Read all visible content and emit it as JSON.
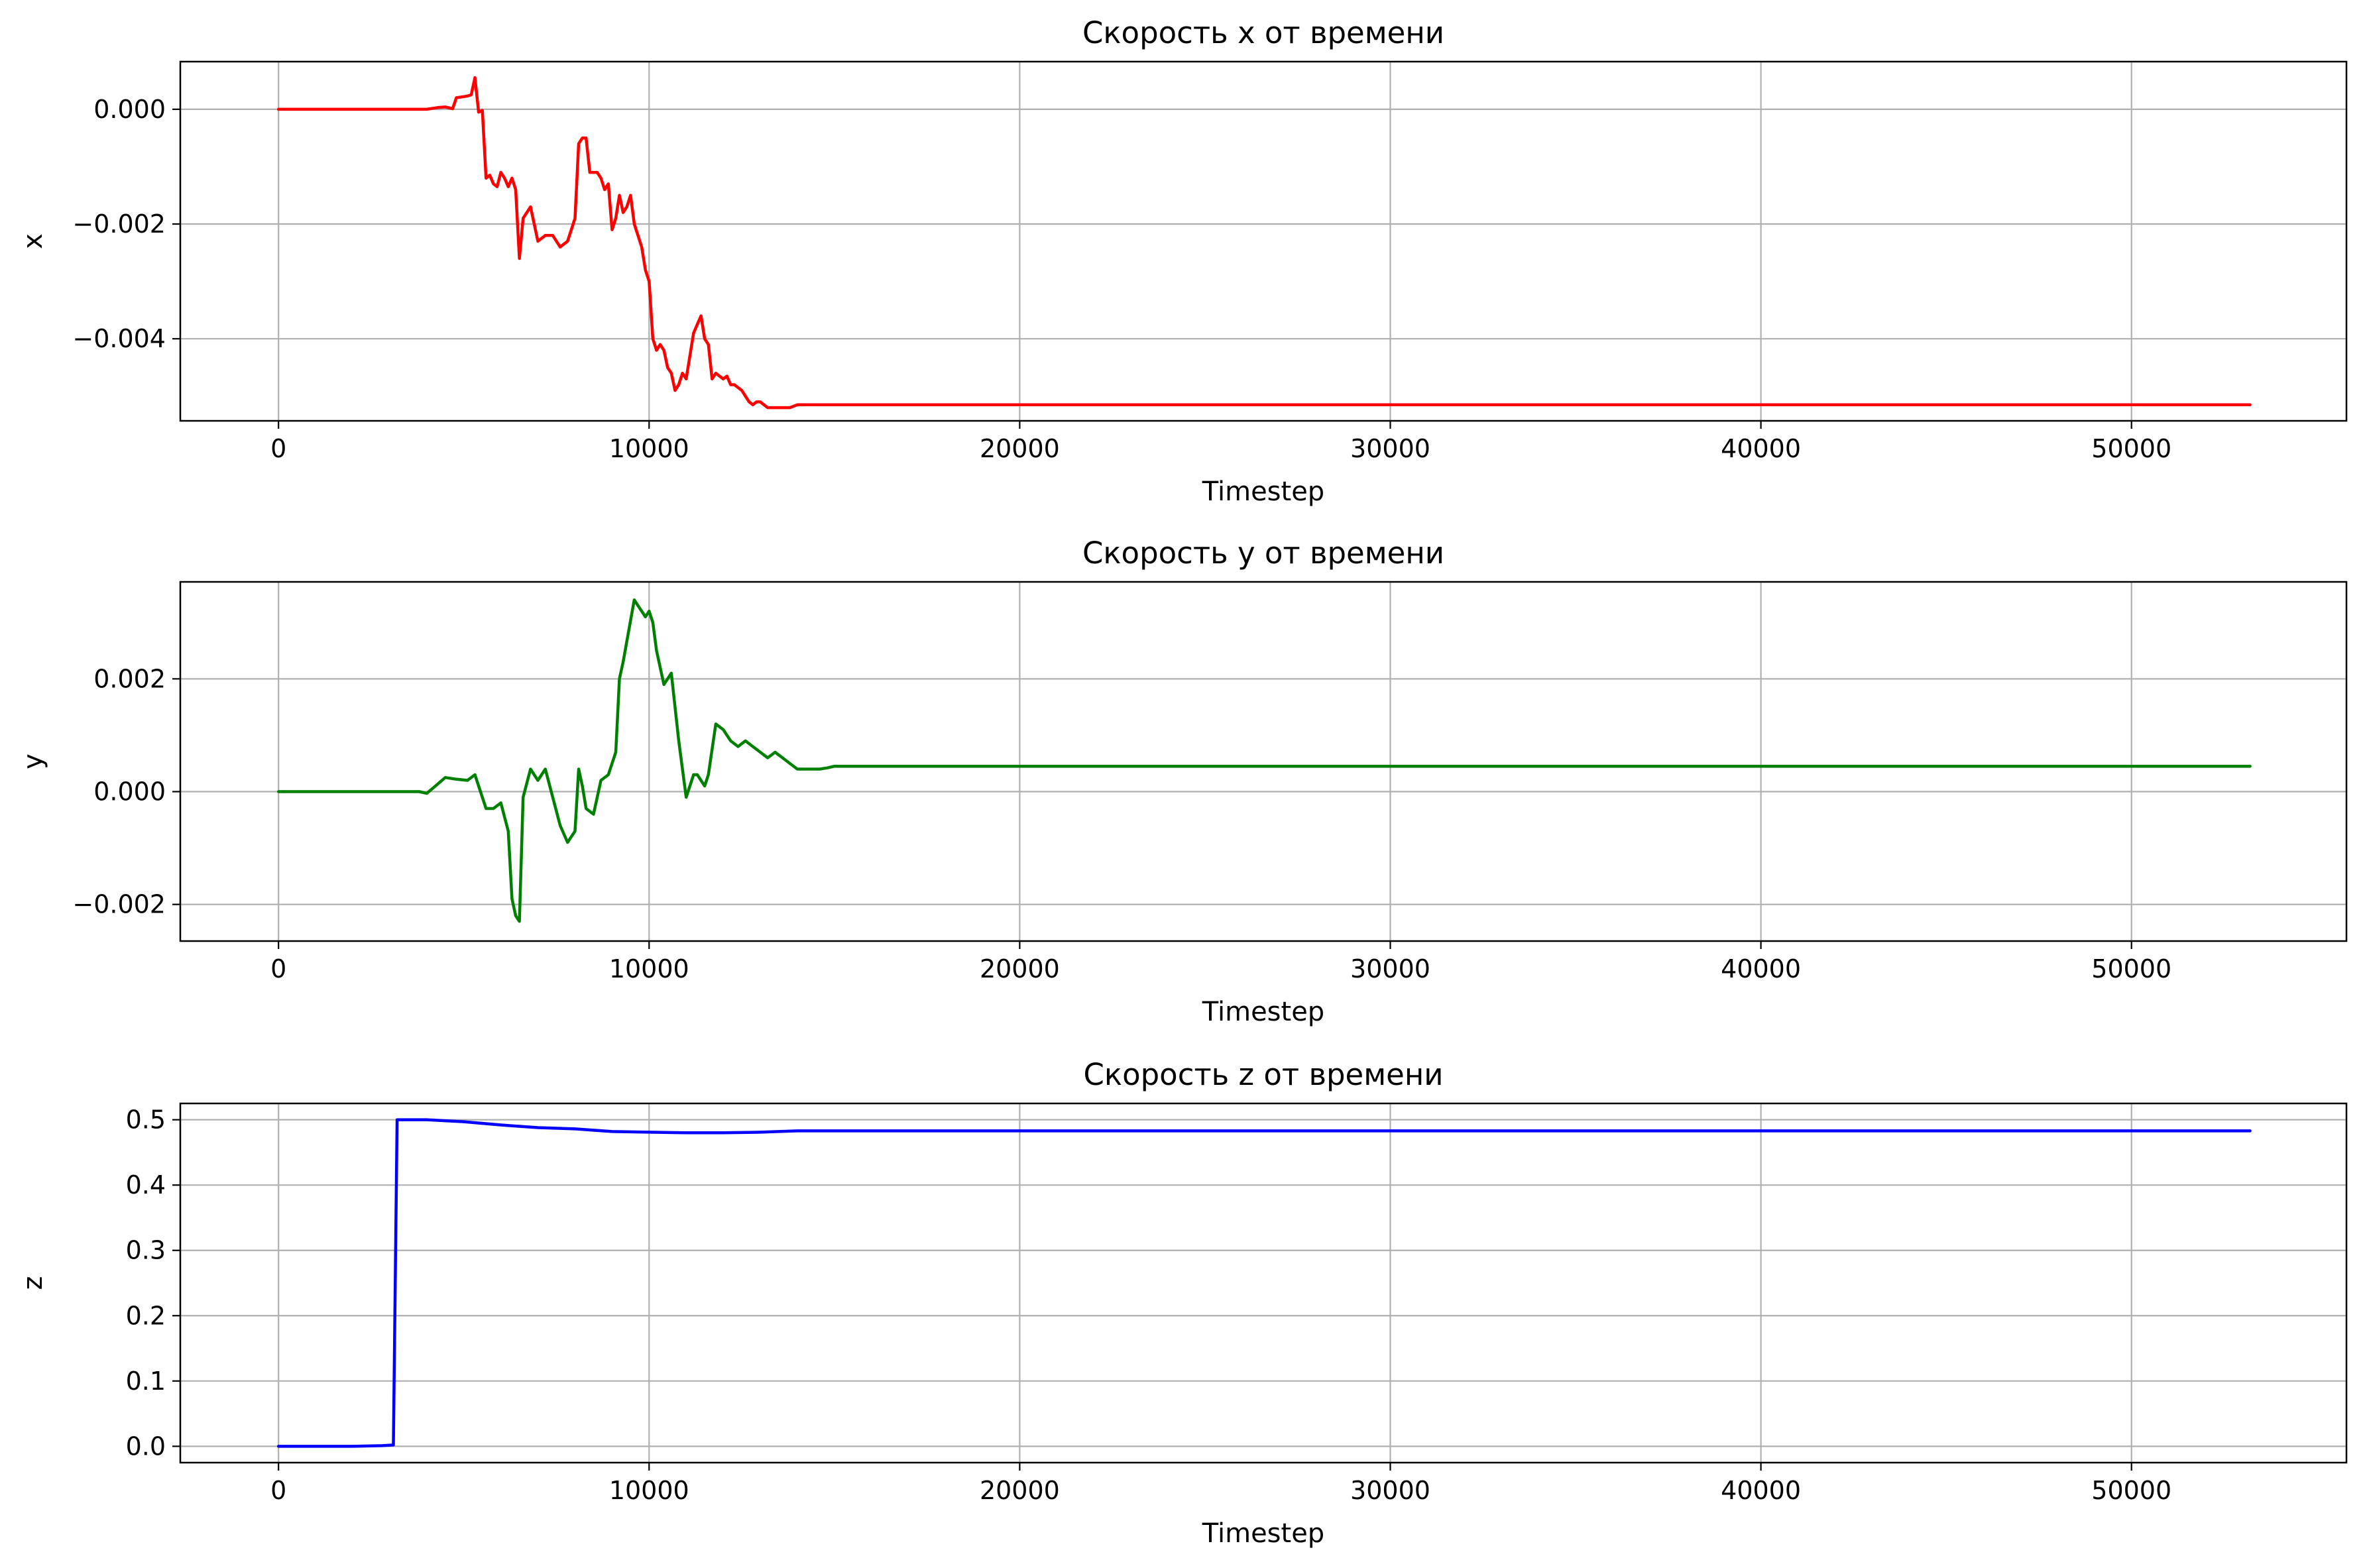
{
  "chart_data": [
    {
      "type": "line",
      "title": "Скорость x от времени",
      "xlabel": "Timestep",
      "ylabel": "x",
      "xlim": [
        -2650,
        55800
      ],
      "ylim": [
        -0.00543,
        0.00083
      ],
      "x_ticks": [
        0,
        10000,
        20000,
        30000,
        40000,
        50000
      ],
      "x_tick_labels": [
        "0",
        "10000",
        "20000",
        "30000",
        "40000",
        "50000"
      ],
      "y_ticks": [
        0.0,
        -0.002,
        -0.004
      ],
      "y_tick_labels": [
        "0.000",
        "−0.002",
        "−0.004"
      ],
      "grid": true,
      "color": "#ff0000",
      "series": [
        {
          "x": [
            0,
            1000,
            2000,
            3000,
            4000,
            4300,
            4500,
            4700,
            4800,
            5000,
            5100,
            5200,
            5300,
            5400,
            5500,
            5600,
            5700,
            5800,
            5900,
            6000,
            6100,
            6200,
            6300,
            6400,
            6500,
            6600,
            6700,
            6800,
            7000,
            7200,
            7400,
            7600,
            7800,
            8000,
            8100,
            8200,
            8300,
            8400,
            8600,
            8700,
            8800,
            8900,
            9000,
            9100,
            9200,
            9300,
            9400,
            9500,
            9600,
            9700,
            9800,
            9900,
            10000,
            10100,
            10200,
            10300,
            10400,
            10500,
            10600,
            10700,
            10800,
            10900,
            11000,
            11200,
            11400,
            11500,
            11600,
            11700,
            11800,
            11900,
            12000,
            12100,
            12200,
            12300,
            12500,
            12600,
            12700,
            12800,
            12900,
            13000,
            13100,
            13200,
            13400,
            13600,
            13800,
            14000,
            14200,
            14400,
            14600,
            14800,
            15000,
            15300,
            15600,
            16000,
            16500,
            17000,
            20000,
            30000,
            40000,
            53200
          ],
          "y": [
            0,
            0,
            0,
            0,
            0,
            3e-05,
            4e-05,
            1e-05,
            0.0002,
            0.00022,
            0.00023,
            0.00025,
            0.00055,
            -5e-05,
            -2e-05,
            -0.0012,
            -0.00115,
            -0.0013,
            -0.00135,
            -0.0011,
            -0.0012,
            -0.00135,
            -0.0012,
            -0.0014,
            -0.0026,
            -0.0019,
            -0.0018,
            -0.0017,
            -0.0023,
            -0.0022,
            -0.0022,
            -0.0024,
            -0.0023,
            -0.0019,
            -0.0006,
            -0.0005,
            -0.0005,
            -0.0011,
            -0.0011,
            -0.0012,
            -0.0014,
            -0.0013,
            -0.0021,
            -0.0019,
            -0.0015,
            -0.0018,
            -0.0017,
            -0.0015,
            -0.002,
            -0.0022,
            -0.0024,
            -0.0028,
            -0.003,
            -0.004,
            -0.0042,
            -0.0041,
            -0.0042,
            -0.0045,
            -0.0046,
            -0.0049,
            -0.0048,
            -0.0046,
            -0.0047,
            -0.0039,
            -0.0036,
            -0.004,
            -0.0041,
            -0.0047,
            -0.0046,
            -0.00465,
            -0.0047,
            -0.00465,
            -0.0048,
            -0.0048,
            -0.0049,
            -0.005,
            -0.0051,
            -0.00515,
            -0.0051,
            -0.0051,
            -0.00515,
            -0.0052,
            -0.0052,
            -0.0052,
            -0.0052,
            -0.00515,
            -0.00515,
            -0.00515,
            -0.00515,
            -0.00515,
            -0.00515,
            -0.00515,
            -0.00515,
            -0.00515,
            -0.00515,
            -0.00515,
            -0.00515,
            -0.00515,
            -0.00515,
            -0.00515
          ]
        }
      ]
    },
    {
      "type": "line",
      "title": "Скорость y от времени",
      "xlabel": "Timestep",
      "ylabel": "y",
      "xlim": [
        -2650,
        55800
      ],
      "ylim": [
        -0.00265,
        0.00372
      ],
      "x_ticks": [
        0,
        10000,
        20000,
        30000,
        40000,
        50000
      ],
      "x_tick_labels": [
        "0",
        "10000",
        "20000",
        "30000",
        "40000",
        "50000"
      ],
      "y_ticks": [
        0.002,
        0.0,
        -0.002
      ],
      "y_tick_labels": [
        "0.002",
        "0.000",
        "−0.002"
      ],
      "grid": true,
      "color": "#008000",
      "series": [
        {
          "x": [
            0,
            1000,
            2000,
            3000,
            3800,
            4000,
            4200,
            4500,
            4800,
            5100,
            5300,
            5600,
            5800,
            6000,
            6200,
            6300,
            6400,
            6500,
            6600,
            6800,
            7000,
            7200,
            7400,
            7600,
            7800,
            8000,
            8100,
            8200,
            8300,
            8500,
            8700,
            8900,
            9100,
            9200,
            9300,
            9600,
            9800,
            9900,
            10000,
            10100,
            10200,
            10400,
            10500,
            10600,
            10800,
            11000,
            11200,
            11300,
            11500,
            11600,
            11800,
            12000,
            12200,
            12400,
            12600,
            12800,
            13000,
            13200,
            13400,
            13600,
            13800,
            14000,
            14200,
            14400,
            14600,
            14800,
            15000,
            15300,
            15600,
            16000,
            16500,
            17000,
            20000,
            30000,
            40000,
            53200
          ],
          "y": [
            0,
            0,
            0,
            0,
            0,
            -3e-05,
            8e-05,
            0.00025,
            0.00022,
            0.0002,
            0.0003,
            -0.0003,
            -0.0003,
            -0.0002,
            -0.0007,
            -0.0019,
            -0.0022,
            -0.0023,
            -0.0001,
            0.0004,
            0.0002,
            0.0004,
            -0.0001,
            -0.0006,
            -0.0009,
            -0.0007,
            0.0004,
            0.0001,
            -0.0003,
            -0.0004,
            0.0002,
            0.0003,
            0.0007,
            0.002,
            0.0023,
            0.0034,
            0.0032,
            0.0031,
            0.0032,
            0.003,
            0.0025,
            0.0019,
            0.002,
            0.0021,
            0.0009,
            -0.0001,
            0.0003,
            0.0003,
            0.0001,
            0.0003,
            0.0012,
            0.0011,
            0.0009,
            0.0008,
            0.0009,
            0.0008,
            0.0007,
            0.0006,
            0.0007,
            0.0006,
            0.0005,
            0.0004,
            0.0004,
            0.0004,
            0.0004,
            0.00042,
            0.00045,
            0.00045,
            0.00045,
            0.00045,
            0.00045,
            0.00045,
            0.00045,
            0.00045,
            0.00045,
            0.00045
          ]
        }
      ]
    },
    {
      "type": "line",
      "title": "Скорость z от времени",
      "xlabel": "Timestep",
      "ylabel": "z",
      "xlim": [
        -2650,
        55800
      ],
      "ylim": [
        -0.025,
        0.525
      ],
      "x_ticks": [
        0,
        10000,
        20000,
        30000,
        40000,
        50000
      ],
      "x_tick_labels": [
        "0",
        "10000",
        "20000",
        "30000",
        "40000",
        "50000"
      ],
      "y_ticks": [
        0.0,
        0.1,
        0.2,
        0.3,
        0.4,
        0.5
      ],
      "y_tick_labels": [
        "0.0",
        "0.1",
        "0.2",
        "0.3",
        "0.4",
        "0.5"
      ],
      "grid": true,
      "color": "#0000ff",
      "series": [
        {
          "x": [
            0,
            1000,
            2000,
            2800,
            3100,
            3200,
            3500,
            4000,
            5000,
            6000,
            7000,
            8000,
            9000,
            10000,
            11000,
            12000,
            13000,
            14000,
            15000,
            20000,
            30000,
            40000,
            53200
          ],
          "y": [
            0,
            0,
            0,
            0.001,
            0.002,
            0.5,
            0.5,
            0.5,
            0.497,
            0.492,
            0.488,
            0.486,
            0.482,
            0.481,
            0.48,
            0.48,
            0.481,
            0.483,
            0.483,
            0.483,
            0.483,
            0.483,
            0.483
          ]
        }
      ]
    }
  ]
}
